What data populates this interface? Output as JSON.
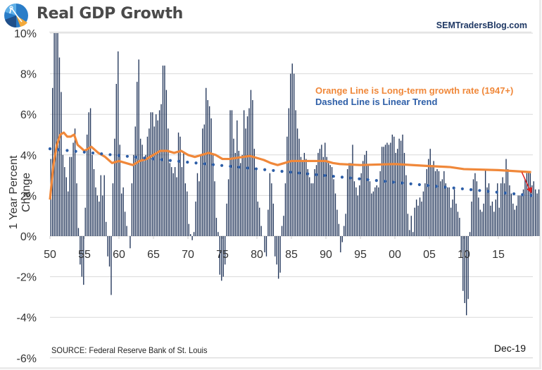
{
  "header": {
    "title": "Real GDP Growth",
    "site": "SEMTradersBlog.com",
    "logo_icon": "pie-chart-compass-logo-icon"
  },
  "annotations": {
    "orange": "Orange Line is Long-term growth rate (1947+)",
    "dashed": "Dashed Line is Linear Trend"
  },
  "footer": {
    "source": "SOURCE:  Federal Reserve Bank of St. Louis",
    "date": "Dec-19"
  },
  "colors": {
    "bars": "#1f3358",
    "orange": "#f0883a",
    "trend": "#2e5fa8",
    "arrow": "#e02020",
    "grid": "#d9d9d9"
  },
  "chart_data": {
    "type": "bar",
    "title": "Real GDP Growth",
    "ylabel": "1 Year Percent Change",
    "xlabel": "",
    "ylim": [
      -6,
      10
    ],
    "yticks": [
      -6,
      -4,
      -2,
      0,
      2,
      4,
      6,
      8,
      10
    ],
    "ytick_labels": [
      "-6%",
      "-4%",
      "-2%",
      "0%",
      "2%",
      "4%",
      "6%",
      "8%",
      "10%"
    ],
    "xlim": [
      1950,
      2020
    ],
    "xticks": [
      1950,
      1955,
      1960,
      1965,
      1970,
      1975,
      1980,
      1985,
      1990,
      1995,
      2000,
      2005,
      2010,
      2015
    ],
    "xtick_labels": [
      "50",
      "55",
      "60",
      "65",
      "70",
      "75",
      "80",
      "85",
      "90",
      "95",
      "00",
      "05",
      "10",
      "15"
    ],
    "grid": true,
    "legend": "top-right annotations",
    "series": [
      {
        "name": "Real GDP 1 Year Percent Change (quarterly)",
        "type": "bar",
        "start_year": 1950,
        "values": [
          3.8,
          7.3,
          10.0,
          10.0,
          10.0,
          8.8,
          7.1,
          4.0,
          3.4,
          2.9,
          2.2,
          3.9,
          3.9,
          4.6,
          5.3,
          2.6,
          0.4,
          -1.4,
          -2.0,
          -2.4,
          1.4,
          5.0,
          6.1,
          6.3,
          4.0,
          3.3,
          2.4,
          2.0,
          1.7,
          3.0,
          2.0,
          3.0,
          0.7,
          -1.0,
          -1.5,
          -2.9,
          2.6,
          4.8,
          7.5,
          9.1,
          4.5,
          2.1,
          2.4,
          1.2,
          0.5,
          0.0,
          -0.6,
          2.6,
          4.0,
          5.4,
          7.6,
          8.7,
          4.8,
          4.5,
          3.7,
          4.0,
          4.9,
          5.3,
          6.1,
          6.1,
          5.4,
          6.0,
          5.7,
          6.2,
          6.5,
          8.4,
          8.4,
          7.2,
          5.3,
          3.6,
          3.4,
          3.1,
          3.4,
          2.9,
          5.1,
          4.9,
          3.4,
          4.1,
          2.6,
          2.2,
          0.6,
          0.1,
          -0.2,
          0.2,
          1.7,
          3.1,
          2.7,
          4.0,
          5.3,
          5.5,
          7.3,
          6.7,
          6.4,
          5.8,
          4.0,
          2.7,
          0.9,
          0.2,
          -1.9,
          -2.2,
          -2.0,
          -1.4,
          1.6,
          2.8,
          6.2,
          6.2,
          4.8,
          4.1,
          5.7,
          4.2,
          3.6,
          4.0,
          6.2,
          5.3,
          5.9,
          6.3,
          7.2,
          6.7,
          4.3,
          3.3,
          1.7,
          1.4,
          0.5,
          -0.0,
          -0.8,
          -1.0,
          1.3,
          3.1,
          2.6,
          1.6,
          -1.0,
          -1.4,
          -2.1,
          -1.8,
          0.5,
          1.0,
          2.6,
          4.9,
          6.3,
          8.0,
          8.5,
          8.0,
          6.2,
          5.3,
          4.8,
          3.9,
          3.7,
          4.1,
          3.8,
          3.3,
          2.9,
          2.6,
          2.6,
          3.3,
          3.5,
          4.1,
          4.3,
          4.5,
          3.9,
          4.6,
          3.9,
          3.6,
          3.5,
          3.4,
          2.8,
          2.1,
          1.3,
          0.6,
          -0.8,
          -0.3,
          0.5,
          1.1,
          3.3,
          3.6,
          3.6,
          4.5,
          2.7,
          2.4,
          2.0,
          2.5,
          3.1,
          3.7,
          4.0,
          4.2,
          3.5,
          2.7,
          2.1,
          2.2,
          2.4,
          2.5,
          2.4,
          3.2,
          4.4,
          4.4,
          4.5,
          4.6,
          4.5,
          4.6,
          5.0,
          4.9,
          4.1,
          4.3,
          4.8,
          4.7,
          5.0,
          4.1,
          3.0,
          1.1,
          0.3,
          1.0,
          0.2,
          1.4,
          1.8,
          1.5,
          1.9,
          1.7,
          2.2,
          2.6,
          3.3,
          3.8,
          4.3,
          3.5,
          3.7,
          3.2,
          3.3,
          3.2,
          2.7,
          2.8,
          3.2,
          2.6,
          2.4,
          2.4,
          1.4,
          1.8,
          2.3,
          1.6,
          1.2,
          0.9,
          -0.8,
          -2.7,
          -3.3,
          -3.9,
          -3.1,
          0.2,
          1.7,
          2.8,
          3.1,
          2.7,
          1.9,
          1.3,
          1.2,
          1.6,
          3.3,
          2.4,
          2.6,
          1.5,
          1.7,
          1.2,
          1.8,
          2.6,
          1.4,
          2.6,
          2.9,
          2.6,
          3.8,
          3.3,
          2.5,
          2.1,
          1.6,
          1.3,
          1.5,
          2.0,
          2.0,
          2.1,
          2.3,
          2.8,
          3.1,
          3.2,
          3.1,
          2.5,
          2.7,
          2.3,
          2.1,
          2.3
        ]
      },
      {
        "name": "Long-term growth rate (1947+)",
        "type": "line",
        "color": "orange",
        "x": [
          1950,
          1950.5,
          1951,
          1951.5,
          1952,
          1952.5,
          1953,
          1953.5,
          1954,
          1955,
          1956,
          1957,
          1958,
          1959,
          1960,
          1961,
          1962,
          1963,
          1964,
          1965,
          1966,
          1967,
          1968,
          1969,
          1970,
          1971,
          1972,
          1973,
          1974,
          1975,
          1976,
          1977,
          1978,
          1979,
          1980,
          1981,
          1982,
          1983,
          1984,
          1985,
          1990,
          1991,
          1992,
          1995,
          2000,
          2005,
          2008,
          2010,
          2015,
          2019.75
        ],
        "values": [
          1.8,
          3.5,
          4.5,
          5.0,
          5.1,
          4.9,
          4.9,
          5.0,
          4.5,
          4.2,
          4.4,
          4.1,
          3.9,
          3.6,
          3.7,
          3.6,
          3.5,
          3.7,
          3.8,
          4.0,
          4.2,
          4.2,
          4.1,
          4.2,
          4.0,
          3.9,
          4.0,
          4.1,
          4.0,
          3.8,
          3.8,
          3.85,
          3.9,
          3.95,
          3.85,
          3.75,
          3.6,
          3.5,
          3.6,
          3.7,
          3.7,
          3.6,
          3.55,
          3.5,
          3.55,
          3.45,
          3.4,
          3.3,
          3.25,
          3.15
        ]
      },
      {
        "name": "Linear Trend",
        "type": "line-dotted",
        "color": "trend",
        "x": [
          1950,
          2019.75
        ],
        "values": [
          4.3,
          2.0
        ]
      }
    ],
    "annotations": [
      "Orange Line is Long-term growth rate (1947+)",
      "Dashed Line is Linear Trend",
      "Red arrow pointing down at latest data (Dec-19)"
    ]
  }
}
